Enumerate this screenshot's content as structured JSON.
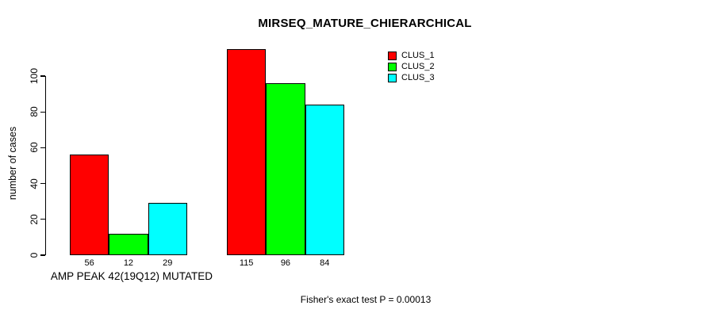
{
  "chart_data": {
    "type": "bar",
    "title": "MIRSEQ_MATURE_CHIERARCHICAL",
    "ylabel": "number of cases",
    "xlabel": "",
    "yticks": [
      0,
      20,
      40,
      60,
      80,
      100
    ],
    "ylim": [
      0,
      120
    ],
    "grid": false,
    "legend_position": "top-right",
    "categories": [
      "AMP PEAK 42(19Q12) MUTATED",
      ""
    ],
    "series": [
      {
        "name": "CLUS_1",
        "color": "#ff0000",
        "values": [
          56,
          115
        ]
      },
      {
        "name": "CLUS_2",
        "color": "#00ff00",
        "values": [
          12,
          96
        ]
      },
      {
        "name": "CLUS_3",
        "color": "#00ffff",
        "values": [
          29,
          84
        ]
      }
    ],
    "bar_value_labels": [
      [
        56,
        12,
        29
      ],
      [
        115,
        96,
        84
      ]
    ],
    "annotation": "Fisher's exact test P = 0.00013"
  }
}
